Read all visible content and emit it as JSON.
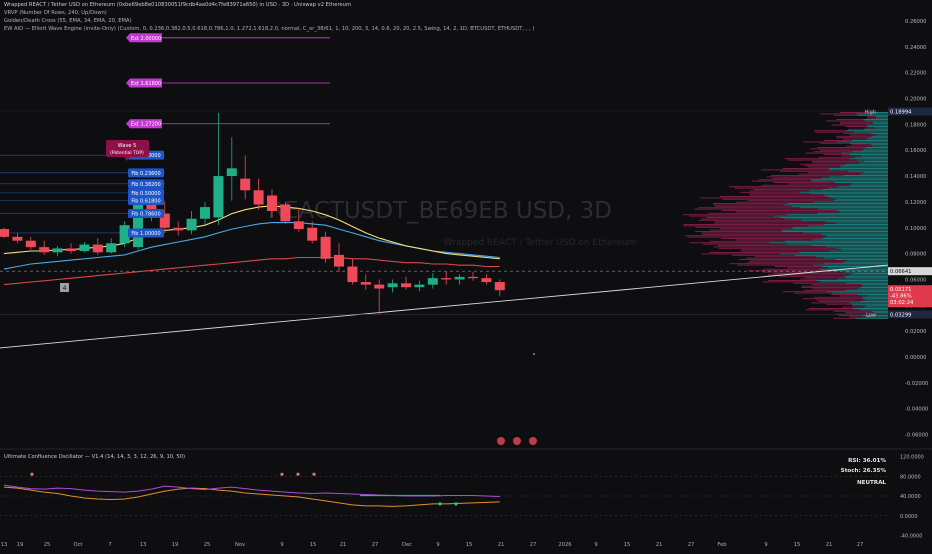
{
  "header": {
    "line1": "Wrapped REACT / Tether USD on Ethereum (0xbe69eb8e010830051f9cdb4aa0d4c7fe83971a650) in USD · 3D · Uniswap v2 Ethereum",
    "line2": "VRVP (Number Of Rows, 240, Up/Down)",
    "line3": "Golden/Death Cross (55, EMA, 34, EMA, 20, EMA)",
    "line4": "EW AIO — Elliott Wave Engine (invite-Only) (Custom, 0, 0.236,0.382,0.5,0.618,0.786,1.0, 1.272,1.618,2.0, normal, C_or_38/61, 1, 10, 200, 3, 14, 0.6, 20, 20, 2.5, Swing, 14, 2, 1D, BTCUSDT, ETHUSDT, , , )"
  },
  "watermark": "REACTUSDT_BE69EB USD, 3D",
  "watermark_sub": "Wrapped REACT / Tether USD on Ethereum",
  "oscillator": {
    "title": "Ultimate Confluence Oscillator — V1.4 (14, 14, 3, 3, 12, 26, 9, 10, 50)",
    "rsi": "RSI: 36.01%",
    "stoch": "Stoch: 26.35%",
    "state": "NEUTRAL",
    "yticks": [
      "120.0000",
      "80.0000",
      "40.0000",
      "0.0000",
      "-40.0000"
    ]
  },
  "fib_labels": [
    "Fib 0.00000",
    "Fib 0.23600",
    "Fib 0.38200",
    "Fib 0.50000",
    "Fib 0.61800",
    "Fib 0.78600",
    "Fib 1.00000"
  ],
  "ext_labels": [
    "Ext 2.00000",
    "Ext 1.61800",
    "Ext 1.27200"
  ],
  "wave_label": {
    "line1": "Wave 5",
    "line2": "(Potential TOP)"
  },
  "wave_marker": "4",
  "price_axis": {
    "ticks": [
      "0.26000",
      "0.24000",
      "0.22000",
      "0.20000",
      "0.18000",
      "0.16000",
      "0.14000",
      "0.12000",
      "0.10000",
      "0.08000",
      "0.06000",
      "0.04000",
      "0.02000",
      "0.00000",
      "-0.02000",
      "-0.04000",
      "-0.06000"
    ],
    "high_label": "High",
    "high_value": "0.18994",
    "cur_value": "0.06641",
    "last_value": "0.05171",
    "last_change": "-43.86%",
    "last_timer": "03:02:24",
    "low_label": "Low",
    "low_value": "0.03299"
  },
  "x_axis": [
    "13",
    "19",
    "25",
    "Oct",
    "7",
    "13",
    "19",
    "25",
    "Nov",
    "9",
    "15",
    "21",
    "27",
    "Dec",
    "9",
    "15",
    "21",
    "27",
    "2026",
    "9",
    "15",
    "21",
    "27",
    "Feb",
    "9",
    "15",
    "21",
    "27"
  ],
  "chart_data": {
    "type": "candlestick",
    "title": "Wrapped REACT / Tether USD on Ethereum · 3D",
    "ylim": [
      -0.065,
      0.265
    ],
    "candles": [
      {
        "o": 0.099,
        "h": 0.1,
        "l": 0.092,
        "c": 0.093
      },
      {
        "o": 0.093,
        "h": 0.096,
        "l": 0.088,
        "c": 0.09
      },
      {
        "o": 0.09,
        "h": 0.093,
        "l": 0.083,
        "c": 0.085
      },
      {
        "o": 0.085,
        "h": 0.09,
        "l": 0.079,
        "c": 0.081
      },
      {
        "o": 0.081,
        "h": 0.086,
        "l": 0.078,
        "c": 0.084
      },
      {
        "o": 0.084,
        "h": 0.088,
        "l": 0.08,
        "c": 0.082
      },
      {
        "o": 0.082,
        "h": 0.089,
        "l": 0.081,
        "c": 0.087
      },
      {
        "o": 0.087,
        "h": 0.092,
        "l": 0.079,
        "c": 0.081
      },
      {
        "o": 0.081,
        "h": 0.092,
        "l": 0.08,
        "c": 0.088
      },
      {
        "o": 0.088,
        "h": 0.105,
        "l": 0.085,
        "c": 0.102
      },
      {
        "o": 0.085,
        "h": 0.125,
        "l": 0.083,
        "c": 0.12
      },
      {
        "o": 0.12,
        "h": 0.137,
        "l": 0.105,
        "c": 0.111
      },
      {
        "o": 0.111,
        "h": 0.12,
        "l": 0.096,
        "c": 0.1
      },
      {
        "o": 0.1,
        "h": 0.105,
        "l": 0.094,
        "c": 0.098
      },
      {
        "o": 0.098,
        "h": 0.113,
        "l": 0.095,
        "c": 0.107
      },
      {
        "o": 0.107,
        "h": 0.12,
        "l": 0.102,
        "c": 0.116
      },
      {
        "o": 0.108,
        "h": 0.189,
        "l": 0.102,
        "c": 0.14
      },
      {
        "o": 0.14,
        "h": 0.17,
        "l": 0.121,
        "c": 0.146
      },
      {
        "o": 0.138,
        "h": 0.156,
        "l": 0.122,
        "c": 0.129
      },
      {
        "o": 0.129,
        "h": 0.138,
        "l": 0.114,
        "c": 0.118
      },
      {
        "o": 0.125,
        "h": 0.13,
        "l": 0.108,
        "c": 0.113
      },
      {
        "o": 0.118,
        "h": 0.12,
        "l": 0.103,
        "c": 0.105
      },
      {
        "o": 0.105,
        "h": 0.115,
        "l": 0.097,
        "c": 0.099
      },
      {
        "o": 0.1,
        "h": 0.105,
        "l": 0.088,
        "c": 0.09
      },
      {
        "o": 0.093,
        "h": 0.097,
        "l": 0.073,
        "c": 0.076
      },
      {
        "o": 0.079,
        "h": 0.088,
        "l": 0.066,
        "c": 0.07
      },
      {
        "o": 0.07,
        "h": 0.076,
        "l": 0.056,
        "c": 0.058
      },
      {
        "o": 0.058,
        "h": 0.064,
        "l": 0.052,
        "c": 0.056
      },
      {
        "o": 0.056,
        "h": 0.06,
        "l": 0.033,
        "c": 0.053
      },
      {
        "o": 0.054,
        "h": 0.06,
        "l": 0.05,
        "c": 0.057
      },
      {
        "o": 0.057,
        "h": 0.062,
        "l": 0.052,
        "c": 0.054
      },
      {
        "o": 0.054,
        "h": 0.059,
        "l": 0.051,
        "c": 0.056
      },
      {
        "o": 0.056,
        "h": 0.065,
        "l": 0.053,
        "c": 0.061
      },
      {
        "o": 0.061,
        "h": 0.066,
        "l": 0.056,
        "c": 0.06
      },
      {
        "o": 0.06,
        "h": 0.064,
        "l": 0.056,
        "c": 0.062
      },
      {
        "o": 0.062,
        "h": 0.066,
        "l": 0.059,
        "c": 0.061
      },
      {
        "o": 0.061,
        "h": 0.064,
        "l": 0.056,
        "c": 0.058
      },
      {
        "o": 0.058,
        "h": 0.06,
        "l": 0.047,
        "c": 0.0517
      }
    ],
    "fib_levels": [
      0.1562,
      0.1425,
      0.134,
      0.127,
      0.121,
      0.111,
      0.096
    ],
    "ext_levels": [
      0.247,
      0.212,
      0.1805
    ],
    "hline": 0.0664,
    "last_price": 0.0517,
    "ema_yellow": [
      0.08,
      0.081,
      0.082,
      0.082,
      0.083,
      0.083,
      0.084,
      0.085,
      0.086,
      0.088,
      0.092,
      0.096,
      0.098,
      0.099,
      0.1,
      0.102,
      0.106,
      0.111,
      0.114,
      0.116,
      0.117,
      0.116,
      0.115,
      0.113,
      0.11,
      0.106,
      0.101,
      0.096,
      0.092,
      0.089,
      0.086,
      0.084,
      0.082,
      0.08,
      0.079,
      0.078,
      0.077,
      0.076
    ],
    "ema_blue": [
      0.068,
      0.07,
      0.072,
      0.073,
      0.074,
      0.075,
      0.076,
      0.077,
      0.078,
      0.079,
      0.082,
      0.085,
      0.087,
      0.089,
      0.091,
      0.093,
      0.096,
      0.099,
      0.101,
      0.103,
      0.104,
      0.104,
      0.104,
      0.103,
      0.102,
      0.099,
      0.096,
      0.093,
      0.09,
      0.088,
      0.086,
      0.084,
      0.082,
      0.081,
      0.08,
      0.079,
      0.078,
      0.077
    ],
    "ema_red": [
      0.056,
      0.057,
      0.058,
      0.059,
      0.06,
      0.061,
      0.062,
      0.063,
      0.064,
      0.065,
      0.066,
      0.067,
      0.068,
      0.069,
      0.07,
      0.071,
      0.072,
      0.073,
      0.074,
      0.075,
      0.076,
      0.076,
      0.077,
      0.077,
      0.077,
      0.077,
      0.076,
      0.076,
      0.075,
      0.074,
      0.073,
      0.073,
      0.072,
      0.072,
      0.071,
      0.071,
      0.07,
      0.07
    ],
    "trendline": [
      0.038,
      0.068
    ],
    "osc_purple": [
      62,
      58,
      55,
      54,
      56,
      55,
      52,
      50,
      49,
      48,
      50,
      54,
      60,
      58,
      55,
      53,
      56,
      58,
      55,
      52,
      50,
      48,
      46,
      45,
      46,
      45,
      44,
      43,
      42,
      41,
      40,
      40,
      40,
      41,
      41,
      41,
      40,
      39
    ],
    "osc_orange": [
      58,
      56,
      52,
      48,
      45,
      40,
      36,
      34,
      33,
      34,
      38,
      44,
      50,
      54,
      56,
      55,
      52,
      50,
      46,
      44,
      42,
      40,
      38,
      34,
      30,
      26,
      22,
      20,
      20,
      19,
      20,
      22,
      24,
      24,
      25,
      26,
      27,
      28
    ]
  }
}
